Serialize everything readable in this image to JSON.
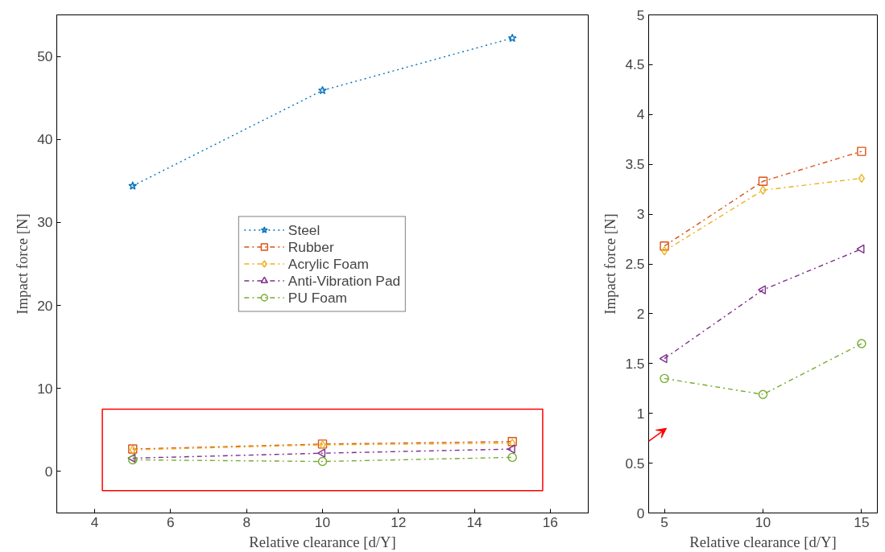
{
  "chart_data": [
    {
      "type": "line",
      "xlabel": "Relative clearance [d/Y]",
      "ylabel": "Impact force [N]",
      "x": [
        5,
        10,
        15
      ],
      "xlim": [
        3,
        17
      ],
      "xticks": [
        4,
        6,
        8,
        10,
        12,
        14,
        16
      ],
      "ylim": [
        -5,
        55
      ],
      "yticks": [
        0,
        10,
        20,
        30,
        40,
        50
      ],
      "grid": false,
      "legend": "center",
      "series": [
        {
          "name": "Steel",
          "color": "#0072bd",
          "marker": "star",
          "line_style": "dotted",
          "values": [
            34.4,
            45.9,
            52.2
          ]
        },
        {
          "name": "Rubber",
          "color": "#d95319",
          "marker": "square",
          "line_style": "dashdot",
          "values": [
            2.7,
            3.3,
            3.6
          ]
        },
        {
          "name": "Acrylic Foam",
          "color": "#edb120",
          "marker": "diamond",
          "line_style": "dashdot",
          "values": [
            2.6,
            3.2,
            3.4
          ]
        },
        {
          "name": "Anti-Vibration Pad",
          "color": "#7e2f8e",
          "marker": "triangle",
          "line_style": "dashdot",
          "values": [
            1.6,
            2.2,
            2.7
          ]
        },
        {
          "name": "PU Foam",
          "color": "#77ac30",
          "marker": "circle",
          "line_style": "dashdot",
          "values": [
            1.4,
            1.2,
            1.7
          ]
        }
      ]
    },
    {
      "type": "line",
      "xlabel": "Relative clearance [d/Y]",
      "ylabel": "Impact force [N]",
      "x": [
        5,
        10,
        15
      ],
      "xlim": [
        4.2,
        15.8
      ],
      "xticks": [
        5,
        10,
        15
      ],
      "ylim": [
        0,
        5
      ],
      "yticks": [
        0,
        {
          "value": 0.5,
          "label": "0.5"
        },
        1,
        {
          "value": 1.5,
          "label": "1.5"
        },
        2,
        {
          "value": 2.5,
          "label": "2.5"
        },
        3,
        {
          "value": 3.5,
          "label": "3.5"
        },
        4,
        {
          "value": 4.5,
          "label": "4.5"
        },
        5
      ],
      "grid": false,
      "legend": false,
      "series": [
        {
          "color": "#d95319",
          "marker": "square",
          "line_style": "dashdot",
          "values": [
            2.68,
            3.33,
            3.63
          ]
        },
        {
          "color": "#edb120",
          "marker": "diamond",
          "line_style": "dashdot",
          "values": [
            2.63,
            3.24,
            3.36
          ]
        },
        {
          "color": "#7e2f8e",
          "marker": "triangle",
          "line_style": "dashdot",
          "values": [
            1.55,
            2.24,
            2.65
          ]
        },
        {
          "color": "#77ac30",
          "marker": "circle",
          "line_style": "dashdot",
          "values": [
            1.35,
            1.19,
            1.7
          ]
        }
      ]
    }
  ]
}
